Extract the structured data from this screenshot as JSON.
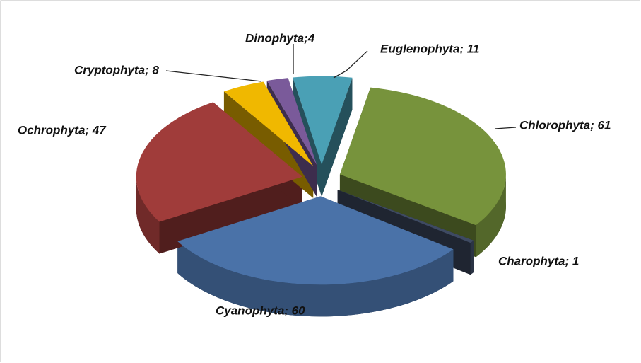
{
  "chart_data": {
    "type": "pie3d",
    "values": [
      11,
      61,
      1,
      60,
      47,
      8,
      4
    ],
    "value_labels": [
      "Euglenophyta; 11",
      "Chlorophyta; 61",
      "Charophyta; 1",
      "Cyanophyta; 60",
      "Ochrophyta; 47",
      "Cryptophyta; 8",
      "Dinophyta;4"
    ],
    "colors": [
      "#4aa0b5",
      "#77933c",
      "#3e4a62",
      "#4a72a8",
      "#a03c3a",
      "#f0b800",
      "#7a5a9a"
    ]
  }
}
